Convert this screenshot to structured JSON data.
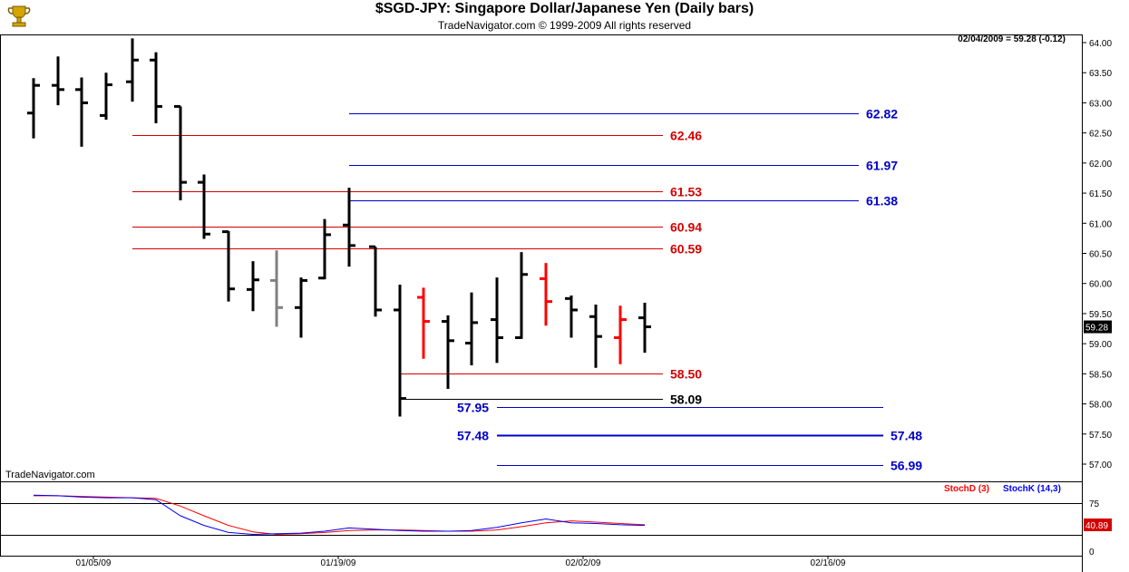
{
  "header": {
    "title": "$SGD-JPY:  Singapore Dollar/Japanese Yen  (Daily bars)",
    "subtitle": "TradeNavigator.com © 1999-2009 All rights reserved",
    "readout": "02/04/2009 = 59.28 (-0.12)",
    "watermark": "TradeNavigator.com",
    "logo_icon": "trophy-icon"
  },
  "colors": {
    "background": "#ffffff",
    "bar": "#000000",
    "bar_gray": "#808080",
    "bar_red": "#ff0000",
    "line_red": "#d40000",
    "line_blue": "#0000c8",
    "stoch_d": "#ff0000",
    "stoch_k": "#0000ff"
  },
  "chart_data": [
    {
      "type": "ohlc",
      "title": "$SGD-JPY:  Singapore Dollar/Japanese Yen  (Daily bars)",
      "ylim": [
        56.8,
        64.2
      ],
      "y_ticks": [
        "57.00",
        "57.50",
        "58.00",
        "58.50",
        "59.00",
        "59.50",
        "60.00",
        "60.50",
        "61.00",
        "61.50",
        "62.00",
        "62.50",
        "63.00",
        "63.50",
        "64.00"
      ],
      "x_ticks": [
        "01/05/09",
        "01/19/09",
        "02/02/09",
        "02/16/09"
      ],
      "last_price_label": "59.28",
      "bars": [
        {
          "o": 62.83,
          "h": 63.41,
          "l": 62.41,
          "c": 63.29,
          "color": "black"
        },
        {
          "o": 63.29,
          "h": 63.77,
          "l": 62.96,
          "c": 63.22,
          "color": "black"
        },
        {
          "o": 63.22,
          "h": 63.42,
          "l": 62.27,
          "c": 63.0,
          "color": "black"
        },
        {
          "o": 62.79,
          "h": 63.5,
          "l": 62.72,
          "c": 63.3,
          "color": "black"
        },
        {
          "o": 63.35,
          "h": 64.07,
          "l": 63.02,
          "c": 63.71,
          "color": "black"
        },
        {
          "o": 63.71,
          "h": 63.84,
          "l": 62.66,
          "c": 62.94,
          "color": "black"
        },
        {
          "o": 62.94,
          "h": 62.94,
          "l": 61.38,
          "c": 61.68,
          "color": "black"
        },
        {
          "o": 61.68,
          "h": 61.81,
          "l": 60.74,
          "c": 60.82,
          "color": "black"
        },
        {
          "o": 60.86,
          "h": 60.87,
          "l": 59.7,
          "c": 59.91,
          "color": "black"
        },
        {
          "o": 59.9,
          "h": 60.37,
          "l": 59.54,
          "c": 60.06,
          "color": "black"
        },
        {
          "o": 60.05,
          "h": 60.55,
          "l": 59.28,
          "c": 59.6,
          "color": "gray"
        },
        {
          "o": 59.6,
          "h": 60.1,
          "l": 59.1,
          "c": 60.05,
          "color": "black"
        },
        {
          "o": 60.09,
          "h": 61.07,
          "l": 60.07,
          "c": 60.81,
          "color": "black"
        },
        {
          "o": 60.97,
          "h": 61.59,
          "l": 60.28,
          "c": 60.63,
          "color": "black"
        },
        {
          "o": 60.61,
          "h": 60.61,
          "l": 59.45,
          "c": 59.56,
          "color": "black"
        },
        {
          "o": 59.56,
          "h": 59.98,
          "l": 57.79,
          "c": 58.09,
          "color": "black"
        },
        {
          "o": 59.77,
          "h": 59.93,
          "l": 58.75,
          "c": 59.37,
          "color": "red"
        },
        {
          "o": 59.37,
          "h": 59.47,
          "l": 58.25,
          "c": 59.05,
          "color": "black"
        },
        {
          "o": 59.01,
          "h": 59.85,
          "l": 58.64,
          "c": 59.35,
          "color": "black"
        },
        {
          "o": 59.4,
          "h": 60.1,
          "l": 58.68,
          "c": 59.1,
          "color": "black"
        },
        {
          "o": 59.1,
          "h": 60.52,
          "l": 59.08,
          "c": 60.15,
          "color": "black"
        },
        {
          "o": 60.08,
          "h": 60.34,
          "l": 59.3,
          "c": 59.7,
          "color": "red"
        },
        {
          "o": 59.75,
          "h": 59.8,
          "l": 59.1,
          "c": 59.56,
          "color": "black"
        },
        {
          "o": 59.45,
          "h": 59.65,
          "l": 58.6,
          "c": 59.12,
          "color": "black"
        },
        {
          "o": 59.1,
          "h": 59.63,
          "l": 58.66,
          "c": 59.4,
          "color": "red"
        },
        {
          "o": 59.43,
          "h": 59.68,
          "l": 58.85,
          "c": 59.28,
          "color": "black"
        }
      ],
      "levels": [
        {
          "value": 62.82,
          "label": "62.82",
          "color": "blue",
          "from_bar": 13,
          "to_day": 34,
          "label_side": "right"
        },
        {
          "value": 62.46,
          "label": "62.46",
          "color": "red",
          "from_bar": 4,
          "to_day": 26,
          "label_side": "right"
        },
        {
          "value": 61.97,
          "label": "61.97",
          "color": "blue",
          "from_bar": 13,
          "to_day": 34,
          "label_side": "right"
        },
        {
          "value": 61.53,
          "label": "61.53",
          "color": "red",
          "from_bar": 4,
          "to_day": 26,
          "label_side": "right"
        },
        {
          "value": 61.38,
          "label": "61.38",
          "color": "blue",
          "from_bar": 13,
          "to_day": 34,
          "label_side": "right"
        },
        {
          "value": 60.94,
          "label": "60.94",
          "color": "red",
          "from_bar": 4,
          "to_day": 26,
          "label_side": "right"
        },
        {
          "value": 60.59,
          "label": "60.59",
          "color": "red",
          "from_bar": 4,
          "to_day": 26,
          "label_side": "right"
        },
        {
          "value": 58.5,
          "label": "58.50",
          "color": "red",
          "from_bar": 15,
          "to_day": 26,
          "label_side": "right"
        },
        {
          "value": 58.09,
          "label": "58.09",
          "color": "black",
          "from_bar": 15,
          "to_day": 26,
          "label_side": "right"
        },
        {
          "value": 57.95,
          "label": "57.95",
          "color": "blue",
          "from_bar": 19,
          "to_day": 35,
          "label_side": "left"
        },
        {
          "value": 57.48,
          "label": "57.48",
          "color": "blue",
          "from_bar": 19,
          "to_day": 35,
          "label_side": "both",
          "thick": true
        },
        {
          "value": 56.99,
          "label": "56.99",
          "color": "blue",
          "from_bar": 19,
          "to_day": 35,
          "label_side": "right"
        }
      ]
    },
    {
      "type": "line",
      "legend": [
        {
          "name": "StochD (3)",
          "color": "red"
        },
        {
          "name": "StochK (14,3)",
          "color": "blue"
        }
      ],
      "y_ticks": [
        "75",
        "0"
      ],
      "levels": [
        75,
        25
      ],
      "last_value_label": "40.89",
      "series": [
        {
          "name": "StochD (3)",
          "values": [
            86,
            86,
            85,
            84,
            83,
            82,
            70,
            55,
            40,
            30,
            26,
            27,
            29,
            32,
            33,
            33,
            32,
            31,
            31,
            33,
            38,
            44,
            47,
            45,
            43,
            41
          ]
        },
        {
          "name": "StochK (14,3)",
          "values": [
            87,
            86,
            84,
            83,
            83,
            80,
            55,
            40,
            29,
            26,
            27,
            28,
            31,
            36,
            34,
            32,
            31,
            31,
            32,
            37,
            44,
            50,
            44,
            43,
            41,
            40
          ]
        }
      ]
    }
  ]
}
